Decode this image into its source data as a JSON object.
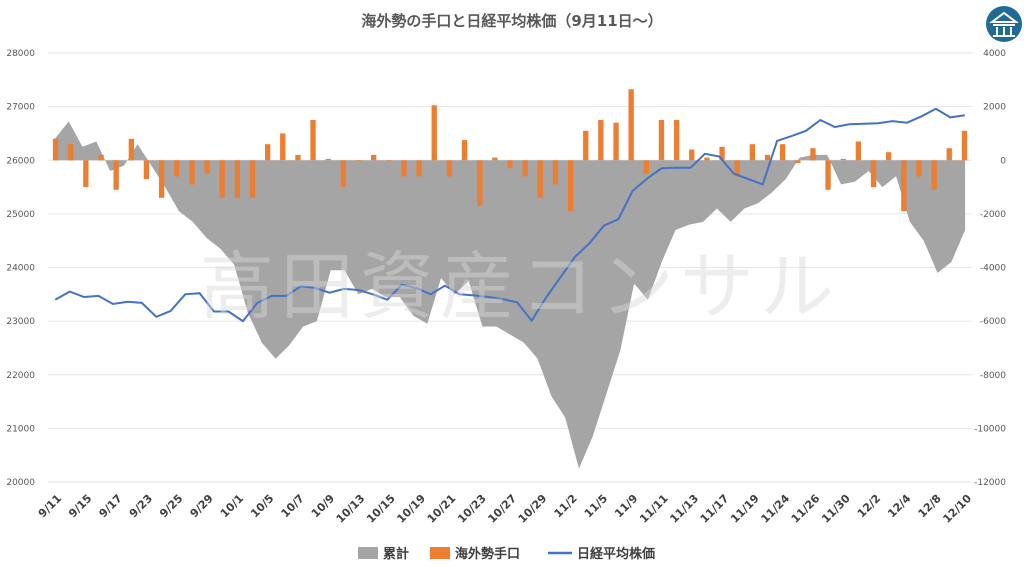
{
  "logo": {
    "icon": "building-columns-icon",
    "color": "#1f6b95"
  },
  "watermark": "高田資産コンサル",
  "chart_data": {
    "type": "bar+line+area",
    "title": "海外勢の手口と日経平均株価（9月11日～）",
    "left_axis": {
      "ylim": [
        20000,
        28000
      ],
      "ticks": [
        "20000",
        "21000",
        "22000",
        "23000",
        "24000",
        "25000",
        "26000",
        "27000",
        "28000"
      ]
    },
    "right_axis": {
      "ylim": [
        -12000,
        4000
      ],
      "ticks": [
        "-12000",
        "-10000",
        "-8000",
        "-6000",
        "-4000",
        "-2000",
        "0",
        "2000",
        "4000"
      ]
    },
    "x_tick_labels": [
      "9/11",
      "9/15",
      "9/17",
      "9/23",
      "9/25",
      "9/29",
      "10/1",
      "10/5",
      "10/7",
      "10/9",
      "10/13",
      "10/15",
      "10/19",
      "10/21",
      "10/23",
      "10/27",
      "10/29",
      "11/2",
      "11/5",
      "11/9",
      "11/11",
      "11/13",
      "11/17",
      "11/19",
      "11/24",
      "11/26",
      "11/30",
      "12/2",
      "12/4",
      "12/8",
      "12/10"
    ],
    "legend": [
      "累計",
      "海外勢手口",
      "日経平均株価"
    ],
    "colors": {
      "cumulative": "#a5a5a5",
      "flows": "#ed7d31",
      "nikkei": "#4472c4"
    },
    "series": [
      {
        "name": "累計",
        "axis": "right",
        "values": [
          800,
          1450,
          500,
          700,
          -400,
          -200,
          600,
          -200,
          -1000,
          -1900,
          -2300,
          -2900,
          -3300,
          -3900,
          -5700,
          -6800,
          -7400,
          -6900,
          -6200,
          -6000,
          -4100,
          -4100,
          -5000,
          -4800,
          -5100,
          -5100,
          -5800,
          -6100,
          -4400,
          -5000,
          -4500,
          -6200,
          -6200,
          -6500,
          -6800,
          -7400,
          -8800,
          -9600,
          -11500,
          -10300,
          -8700,
          -7100,
          -4600,
          -5200,
          -3800,
          -2600,
          -2400,
          -2300,
          -1800,
          -2300,
          -1800,
          -1600,
          -1200,
          -700,
          100,
          200,
          200,
          -900,
          -800,
          -400,
          -1000,
          -600,
          -2300,
          -3000,
          -4200,
          -3800,
          -2600
        ],
        "values_note": "Cumulative net flows (right axis) estimated per trading day"
      },
      {
        "name": "海外勢手口",
        "axis": "right",
        "values": [
          800,
          600,
          -1000,
          200,
          -1100,
          800,
          -700,
          -1400,
          -600,
          -900,
          -500,
          -1400,
          -1400,
          -1400,
          600,
          1000,
          200,
          1500,
          50,
          -1000,
          0,
          200,
          0,
          -600,
          -600,
          2050,
          -600,
          750,
          -1700,
          100,
          -300,
          -600,
          -1400,
          -900,
          -1900,
          1100,
          1500,
          1400,
          2650,
          -500,
          1500,
          1500,
          400,
          100,
          500,
          -600,
          600,
          200,
          600,
          -100,
          450,
          -1100,
          50,
          700,
          -1000,
          300,
          -1900,
          -600,
          -1100,
          450,
          1100
        ],
        "values_note": "Daily net buying/selling (right axis), bars at selected days"
      },
      {
        "name": "日経平均株価",
        "axis": "left",
        "values": [
          23400,
          23550,
          23450,
          23470,
          23320,
          23360,
          23340,
          23080,
          23190,
          23500,
          23520,
          23180,
          23180,
          23000,
          23340,
          23470,
          23470,
          23650,
          23620,
          23530,
          23600,
          23580,
          23500,
          23400,
          23680,
          23620,
          23500,
          23660,
          23500,
          23480,
          23450,
          23410,
          23350,
          23010,
          23440,
          23820,
          24200,
          24450,
          24780,
          24900,
          25430,
          25660,
          25850,
          25860,
          25860,
          26120,
          26070,
          25750,
          25650,
          25550,
          26360,
          26450,
          26550,
          26750,
          26620,
          26670,
          26680,
          26690,
          26730,
          26700,
          26820,
          26960,
          26800,
          26840
        ],
        "values_note": "Nikkei 225 closing (left axis) estimated per trading day"
      }
    ]
  }
}
